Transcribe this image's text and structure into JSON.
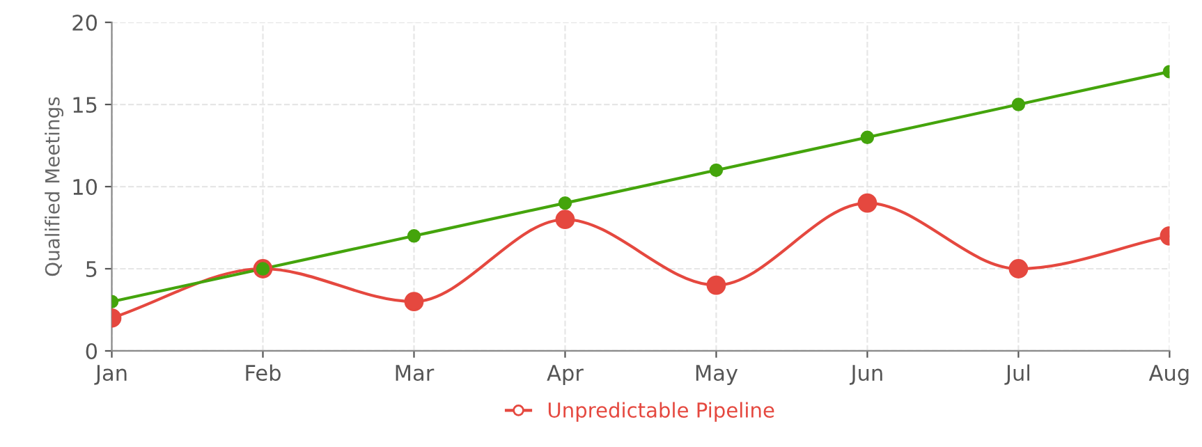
{
  "chart_data": {
    "type": "line",
    "ylabel": "Qualified Meetings",
    "categories": [
      "Jan",
      "Feb",
      "Mar",
      "Apr",
      "May",
      "Jun",
      "Jul",
      "Aug"
    ],
    "series": [
      {
        "name": "Unpredictable Pipeline",
        "color": "#e5483f",
        "values": [
          2,
          5,
          3,
          8,
          4,
          9,
          5,
          7
        ]
      },
      {
        "color": "#44a40c",
        "values": [
          3,
          5,
          7,
          9,
          11,
          13,
          15,
          17
        ]
      }
    ],
    "ylim": [
      0,
      20
    ],
    "yticks": [
      0,
      5,
      10,
      15,
      20
    ],
    "grid": true,
    "legend": "bottom",
    "marker": "circle",
    "line_style": "solid"
  }
}
